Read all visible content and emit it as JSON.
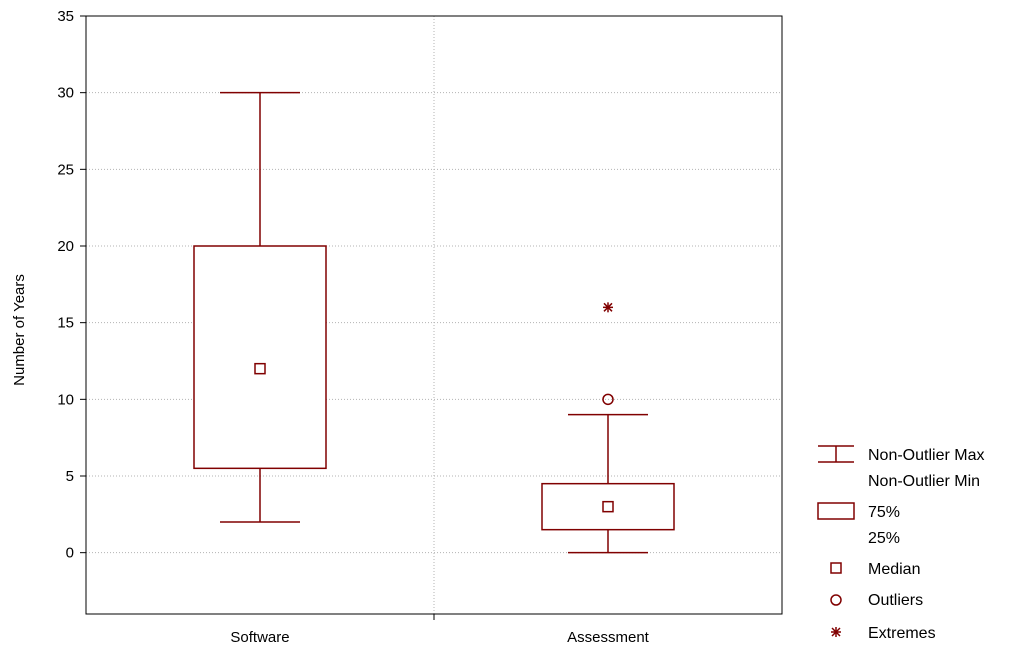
{
  "colors": {
    "box": "#800000",
    "grid": "#b3b3b3",
    "axis": "#000000",
    "background": "#ffffff"
  },
  "chart_data": {
    "type": "boxplot",
    "title": "",
    "xlabel": "",
    "ylabel": "Number of Years",
    "ylim": [
      -4,
      35
    ],
    "yticks": [
      0,
      5,
      10,
      15,
      20,
      25,
      30,
      35
    ],
    "grid": true,
    "legend_position": "right",
    "categories": [
      "Software",
      "Assessment"
    ],
    "boxes": [
      {
        "category": "Software",
        "whisker_min": 2,
        "q1": 5.5,
        "median": 12,
        "q3": 20,
        "whisker_max": 30,
        "outliers": [],
        "extremes": []
      },
      {
        "category": "Assessment",
        "whisker_min": 0,
        "q1": 1.5,
        "median": 3,
        "q3": 4.5,
        "whisker_max": 9,
        "outliers": [
          10
        ],
        "extremes": [
          16
        ]
      }
    ],
    "legend": {
      "whisker_max": "Non-Outlier Max",
      "whisker_min": "Non-Outlier Min",
      "box_top": "75%",
      "box_bottom": "25%",
      "median": "Median",
      "outliers": "Outliers",
      "extremes": "Extremes"
    }
  }
}
